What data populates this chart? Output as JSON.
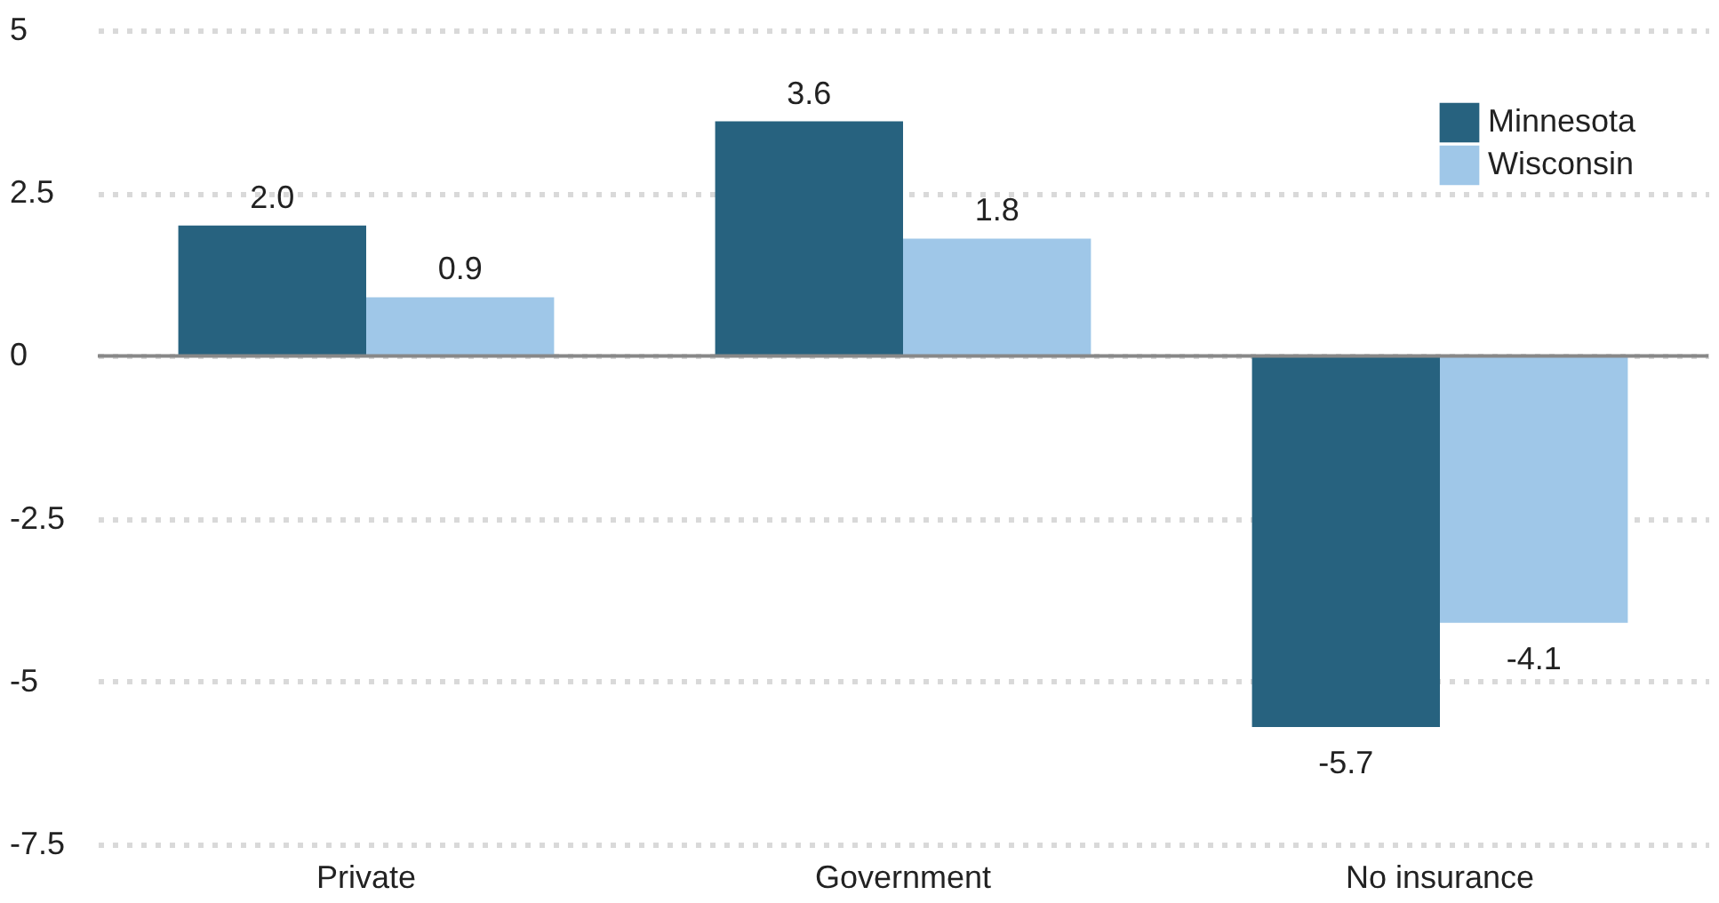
{
  "chart_data": {
    "type": "bar",
    "categories": [
      "Private",
      "Government",
      "No insurance"
    ],
    "series": [
      {
        "name": "Minnesota",
        "color": "#27627f",
        "values": [
          2.0,
          3.6,
          -5.7
        ],
        "value_labels": [
          "2.0",
          "3.6",
          "-5.7"
        ]
      },
      {
        "name": "Wisconsin",
        "color": "#9fc7e8",
        "values": [
          0.9,
          1.8,
          -4.1
        ],
        "value_labels": [
          "0.9",
          "1.8",
          "-4.1"
        ]
      }
    ],
    "ylim": [
      -7.5,
      5
    ],
    "yticks": [
      -7.5,
      -5,
      -2.5,
      0,
      2.5,
      5
    ],
    "grid": "y",
    "legend": "top right",
    "ref_lines": [
      {
        "axis": "y",
        "value": 0,
        "color": "#888888"
      }
    ]
  }
}
